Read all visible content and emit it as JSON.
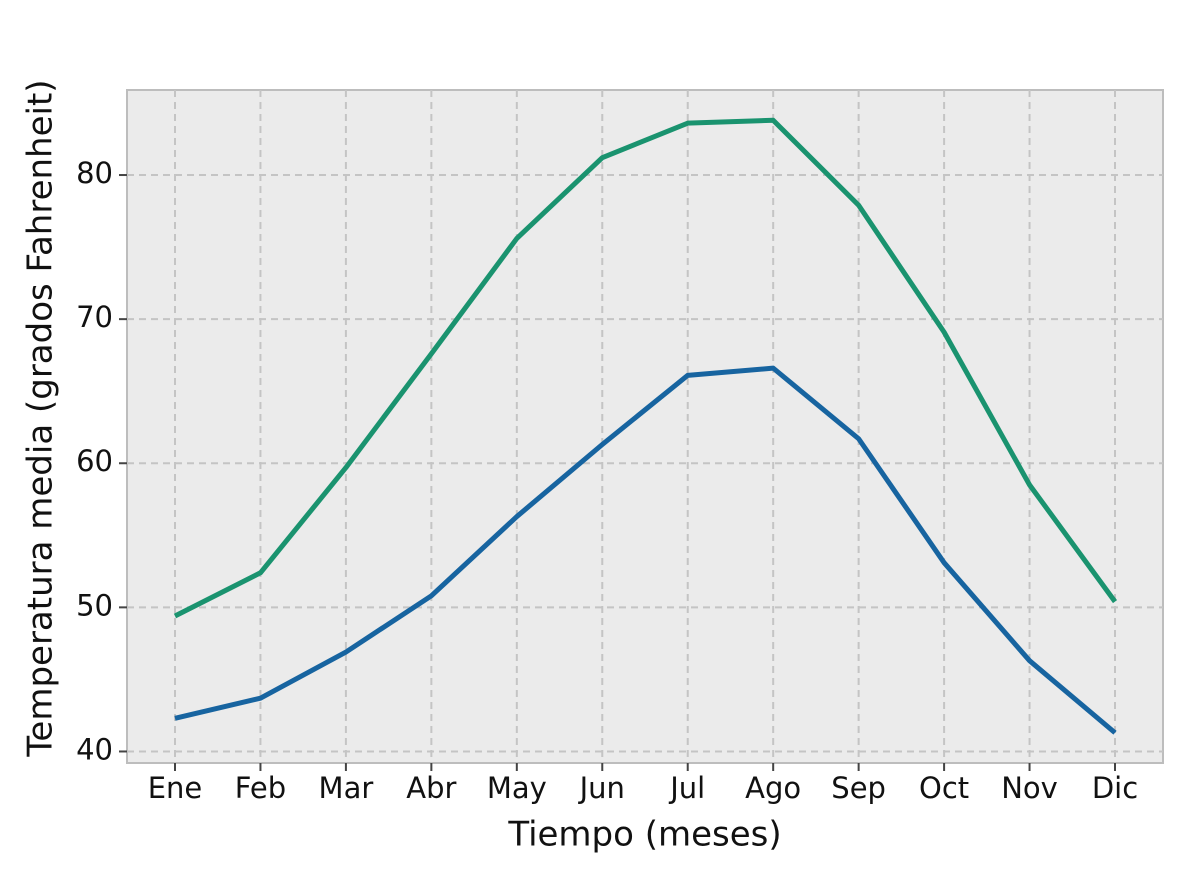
{
  "chart_data": {
    "type": "line",
    "x_label": "Tiempo (meses)",
    "y_label": "Temperatura media (grados Fahrenheit)",
    "categories": [
      "Ene",
      "Feb",
      "Mar",
      "Abr",
      "May",
      "Jun",
      "Jul",
      "Ago",
      "Sep",
      "Oct",
      "Nov",
      "Dic"
    ],
    "series": [
      {
        "color": "#1a936f",
        "values": [
          49.4,
          52.4,
          59.7,
          67.6,
          75.6,
          81.2,
          83.6,
          83.8,
          77.9,
          69.1,
          58.5,
          50.4
        ]
      },
      {
        "color": "#1764a0",
        "values": [
          42.3,
          43.7,
          46.9,
          50.8,
          56.3,
          61.3,
          66.1,
          66.6,
          61.7,
          53.1,
          46.3,
          41.3
        ]
      }
    ],
    "ylim": [
      39.2,
      85.9
    ],
    "yticks": [
      40,
      50,
      60,
      70,
      80
    ],
    "grid": true
  }
}
